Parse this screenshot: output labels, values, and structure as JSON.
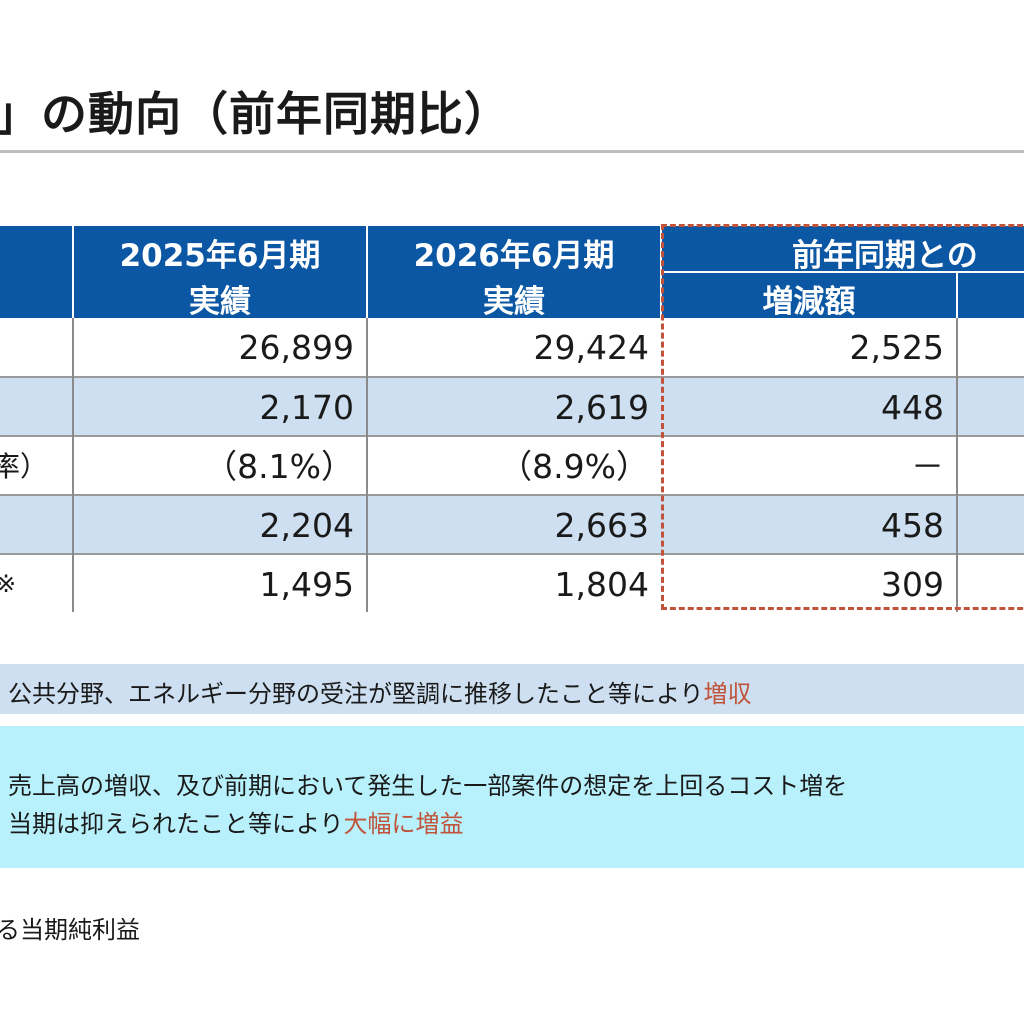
{
  "title": "」の動向（前年同期比）",
  "table": {
    "header": {
      "col2_line1": "2025年6月期",
      "col2_line2": "実績",
      "col3_line1": "2026年6月期",
      "col3_line2": "実績",
      "group_label": "前年同期との",
      "col4_sub": "増減額"
    },
    "rows": [
      {
        "label": "",
        "v2025": "26,899",
        "v2026": "29,424",
        "diff": "2,525"
      },
      {
        "label": "",
        "v2025": "2,170",
        "v2026": "2,619",
        "diff": "448"
      },
      {
        "label": "率）",
        "v2025": "（8.1%）",
        "v2026": "（8.9%）",
        "diff": "－"
      },
      {
        "label": "",
        "v2025": "2,204",
        "v2026": "2,663",
        "diff": "458"
      },
      {
        "label": "※",
        "v2025": "1,495",
        "v2026": "1,804",
        "diff": "309"
      }
    ]
  },
  "notes": {
    "revenue_text": "公共分野、エネルギー分野の受注が堅調に推移したこと等により",
    "revenue_highlight": "増収",
    "profit_line1": "売上高の増収、及び前期において発生した一部案件の想定を上回るコスト増を",
    "profit_line2": "当期は抑えられたこと等により",
    "profit_highlight": "大幅に増益"
  },
  "footnote": "る当期純利益",
  "colors": {
    "header_bg": "#0b57a4",
    "row_shade": "#cddff0",
    "note_highlight_bg": "#b8f1fb",
    "accent": "#c0533a"
  }
}
